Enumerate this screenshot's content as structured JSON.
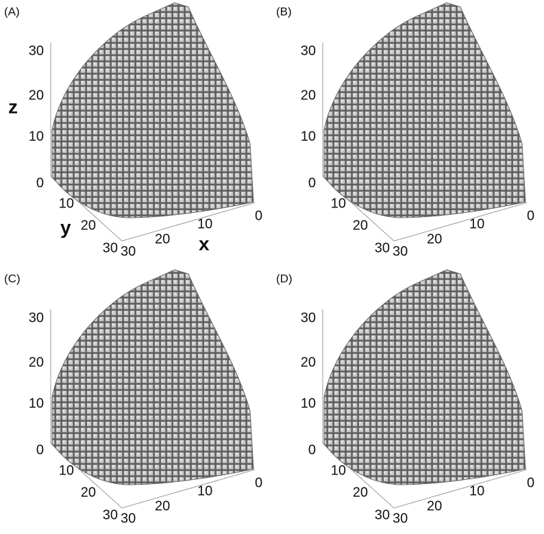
{
  "panels": [
    {
      "label": "(A)",
      "z_ticks": [
        "30",
        "20",
        "10",
        "0"
      ],
      "y_ticks": [
        "10",
        "20",
        "30"
      ],
      "x_ticks": [
        "30",
        "20",
        "10",
        "0"
      ],
      "axis_labels": {
        "x": "x",
        "y": "y",
        "z": "z"
      }
    },
    {
      "label": "(B)",
      "z_ticks": [
        "30",
        "20",
        "10",
        "0"
      ],
      "y_ticks": [
        "10",
        "20",
        "30"
      ],
      "x_ticks": [
        "30",
        "20",
        "10",
        "0"
      ]
    },
    {
      "label": "(C)",
      "z_ticks": [
        "30",
        "20",
        "10",
        "0"
      ],
      "y_ticks": [
        "10",
        "20",
        "30"
      ],
      "x_ticks": [
        "30",
        "20",
        "10",
        "0"
      ]
    },
    {
      "label": "(D)",
      "z_ticks": [
        "30",
        "20",
        "10",
        "0"
      ],
      "y_ticks": [
        "10",
        "20",
        "30"
      ],
      "x_ticks": [
        "30",
        "20",
        "10",
        "0"
      ]
    }
  ]
}
